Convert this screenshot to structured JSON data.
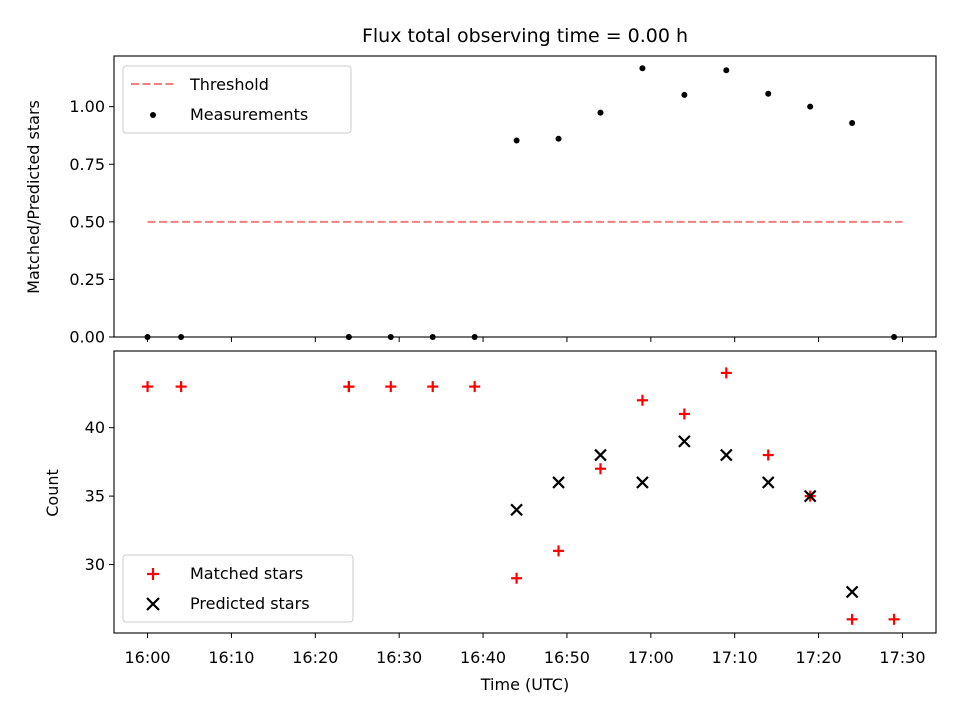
{
  "chart_data": [
    {
      "type": "scatter",
      "title": "Flux total observing time = 0.00 h",
      "xlabel": "",
      "ylabel": "Matched/Predicted stars",
      "xlim": [
        "15:56",
        "17:34"
      ],
      "ylim": [
        0.0,
        1.22
      ],
      "yticks": [
        "0.00",
        "0.25",
        "0.50",
        "0.75",
        "1.00"
      ],
      "grid": false,
      "legend_position": "top-left",
      "threshold": {
        "name": "Threshold",
        "value": 0.5,
        "x_start": "16:00",
        "x_end": "17:30",
        "color": "#f08080",
        "style": "dashed"
      },
      "series": [
        {
          "name": "Measurements",
          "color": "#000000",
          "marker": "dot",
          "points": [
            {
              "x": "16:00",
              "y": 0.0
            },
            {
              "x": "16:04",
              "y": 0.0
            },
            {
              "x": "16:24",
              "y": 0.0
            },
            {
              "x": "16:24",
              "y": 0.0
            },
            {
              "x": "16:29",
              "y": 0.0
            },
            {
              "x": "16:34",
              "y": 0.0
            },
            {
              "x": "16:39",
              "y": 0.0
            },
            {
              "x": "16:44",
              "y": 0.853
            },
            {
              "x": "16:49",
              "y": 0.861
            },
            {
              "x": "16:54",
              "y": 0.974
            },
            {
              "x": "16:59",
              "y": 1.167
            },
            {
              "x": "17:04",
              "y": 1.051
            },
            {
              "x": "17:09",
              "y": 1.158
            },
            {
              "x": "17:14",
              "y": 1.056
            },
            {
              "x": "17:19",
              "y": 1.0
            },
            {
              "x": "17:24",
              "y": 0.929
            },
            {
              "x": "17:29",
              "y": 0.0
            }
          ]
        }
      ]
    },
    {
      "type": "scatter",
      "title": "",
      "xlabel": "Time (UTC)",
      "ylabel": "Count",
      "xlim": [
        "15:56",
        "17:34"
      ],
      "ylim": [
        25.0,
        45.6
      ],
      "yticks": [
        "30",
        "35",
        "40"
      ],
      "xticks": [
        "16:00",
        "16:10",
        "16:20",
        "16:30",
        "16:40",
        "16:50",
        "17:00",
        "17:10",
        "17:20",
        "17:30"
      ],
      "grid": false,
      "legend_position": "bottom-left",
      "series": [
        {
          "name": "Matched stars",
          "color": "#ff0000",
          "marker": "plus",
          "points": [
            {
              "x": "16:00",
              "y": 43
            },
            {
              "x": "16:04",
              "y": 43
            },
            {
              "x": "16:24",
              "y": 43
            },
            {
              "x": "16:24",
              "y": 43
            },
            {
              "x": "16:29",
              "y": 43
            },
            {
              "x": "16:34",
              "y": 43
            },
            {
              "x": "16:39",
              "y": 43
            },
            {
              "x": "16:44",
              "y": 29
            },
            {
              "x": "16:49",
              "y": 31
            },
            {
              "x": "16:54",
              "y": 37
            },
            {
              "x": "16:59",
              "y": 42
            },
            {
              "x": "17:04",
              "y": 41
            },
            {
              "x": "17:09",
              "y": 44
            },
            {
              "x": "17:14",
              "y": 38
            },
            {
              "x": "17:19",
              "y": 35
            },
            {
              "x": "17:24",
              "y": 26
            },
            {
              "x": "17:29",
              "y": 26
            }
          ]
        },
        {
          "name": "Predicted stars",
          "color": "#000000",
          "marker": "x",
          "points": [
            {
              "x": "16:44",
              "y": 34
            },
            {
              "x": "16:49",
              "y": 36
            },
            {
              "x": "16:54",
              "y": 38
            },
            {
              "x": "16:59",
              "y": 36
            },
            {
              "x": "17:04",
              "y": 39
            },
            {
              "x": "17:09",
              "y": 38
            },
            {
              "x": "17:14",
              "y": 36
            },
            {
              "x": "17:19",
              "y": 35
            },
            {
              "x": "17:24",
              "y": 28
            }
          ]
        }
      ]
    }
  ]
}
